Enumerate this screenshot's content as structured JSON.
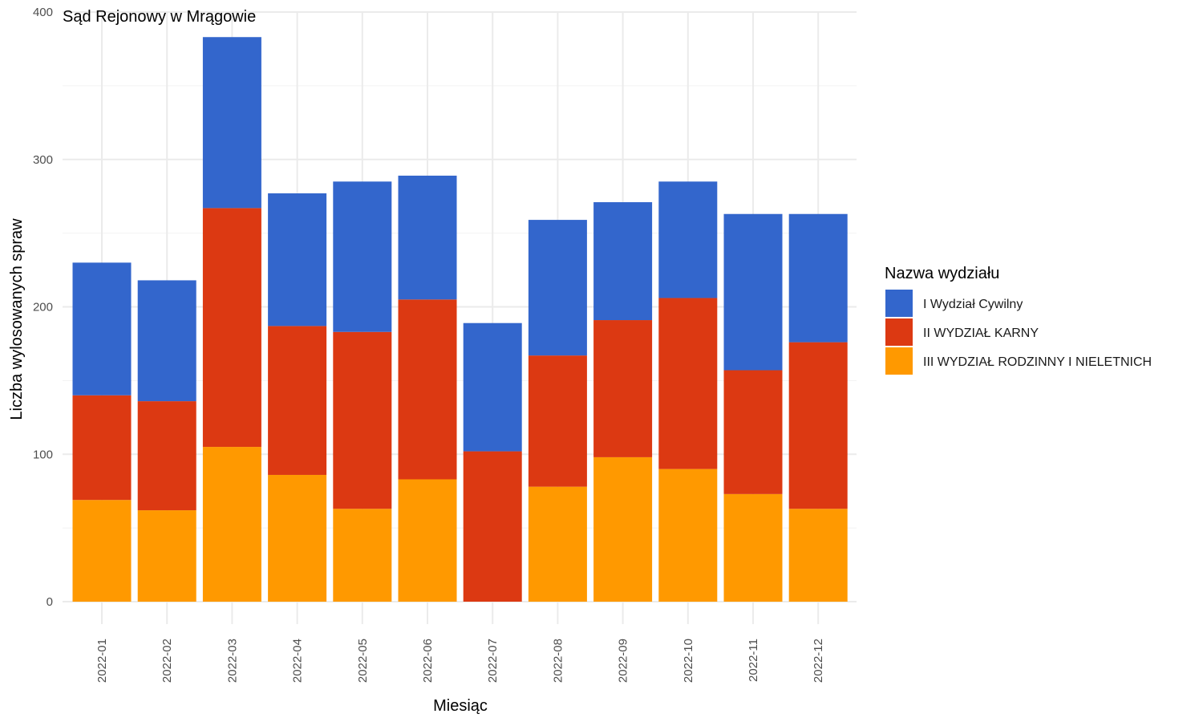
{
  "chart_data": {
    "type": "bar",
    "stacked": true,
    "title": "Sąd Rejonowy w Mrągowie",
    "xlabel": "Miesiąc",
    "ylabel": "Liczba wylosowanych spraw",
    "ylim": [
      0,
      400
    ],
    "yticks": [
      "0",
      "100",
      "200",
      "300",
      "400"
    ],
    "grid": true,
    "legend_title": "Nazwa wydziału",
    "legend_position": "right",
    "categories": [
      "2022-01",
      "2022-02",
      "2022-03",
      "2022-04",
      "2022-05",
      "2022-06",
      "2022-07",
      "2022-08",
      "2022-09",
      "2022-10",
      "2022-11",
      "2022-12"
    ],
    "series": [
      {
        "name": "I Wydział Cywilny",
        "color": "#3366cc",
        "values": [
          90,
          82,
          116,
          90,
          102,
          84,
          87,
          92,
          80,
          79,
          106,
          87
        ]
      },
      {
        "name": "II WYDZIAŁ KARNY",
        "color": "#dc3912",
        "values": [
          71,
          74,
          162,
          101,
          120,
          122,
          102,
          89,
          93,
          116,
          84,
          113
        ]
      },
      {
        "name": "III WYDZIAŁ RODZINNY I NIELETNICH",
        "color": "#ff9900",
        "values": [
          69,
          62,
          105,
          86,
          63,
          83,
          0,
          78,
          98,
          90,
          73,
          63
        ]
      }
    ]
  }
}
